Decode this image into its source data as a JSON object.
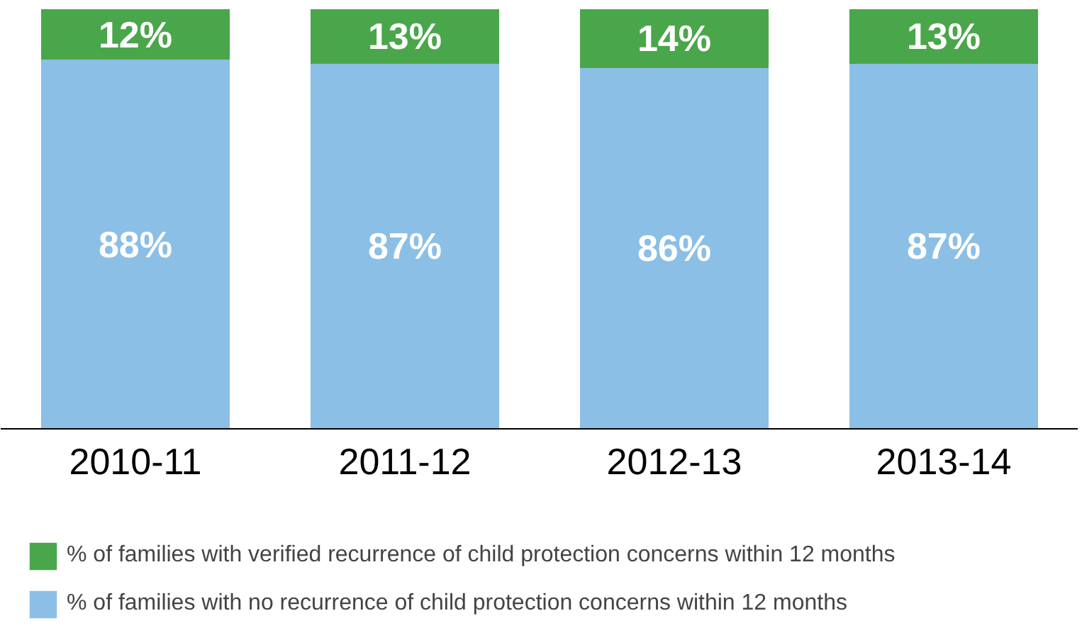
{
  "chart_data": {
    "type": "bar",
    "stacked": true,
    "legend": "bottom",
    "categories": [
      "2010-11",
      "2011-12",
      "2012-13",
      "2013-14"
    ],
    "series": [
      {
        "name": "% of families with no recurrence of child protection concerns within 12 months",
        "color": "#8bbfe6",
        "values": [
          88,
          87,
          86,
          87
        ],
        "value_labels": [
          "88%",
          "87%",
          "86%",
          "87%"
        ]
      },
      {
        "name": "% of families with verified recurrence of child protection concerns within 12 months",
        "color": "#4aa64a",
        "values": [
          12,
          13,
          14,
          13
        ],
        "value_labels": [
          "12%",
          "13%",
          "14%",
          "13%"
        ]
      }
    ]
  }
}
